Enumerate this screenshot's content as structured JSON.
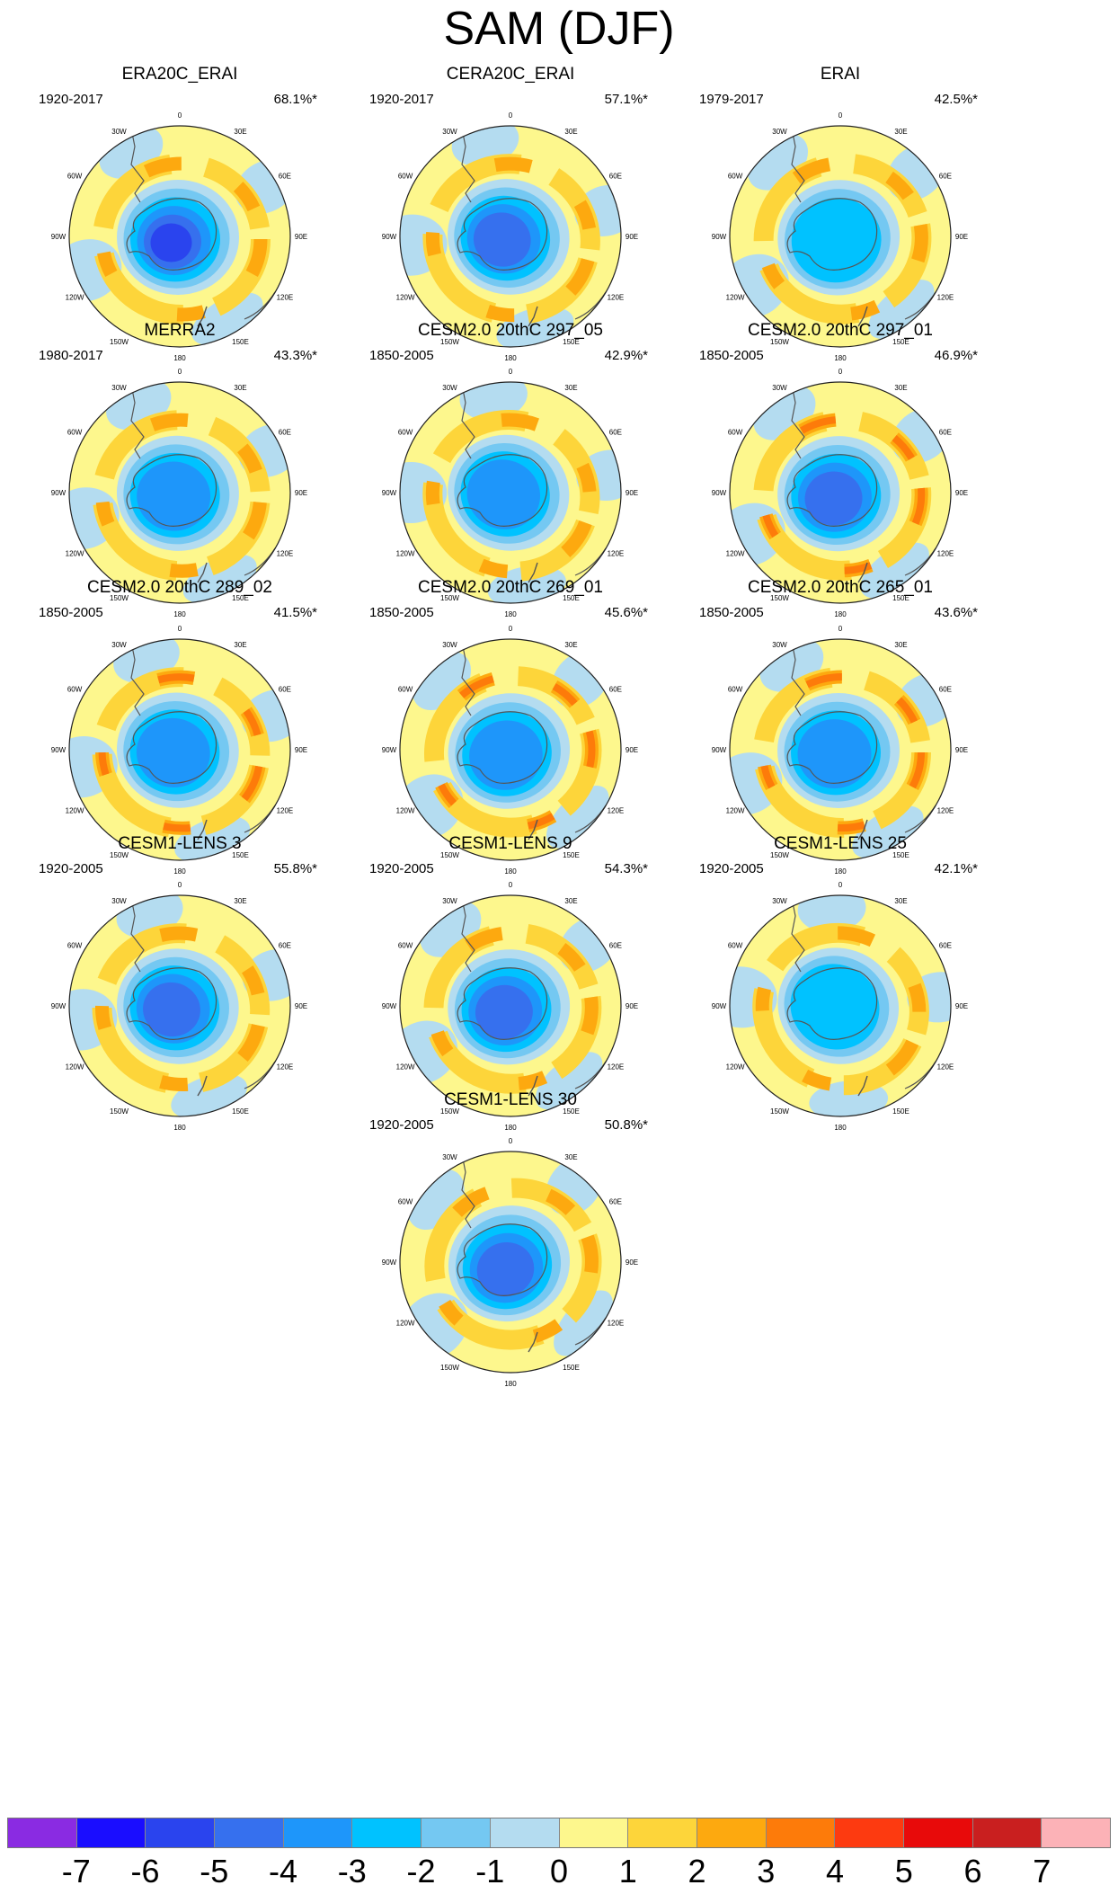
{
  "title": "SAM (DJF)",
  "longitude_labels": [
    "0",
    "30E",
    "60E",
    "90E",
    "120E",
    "150E",
    "180",
    "150W",
    "120W",
    "90W",
    "60W",
    "30W"
  ],
  "panels": [
    {
      "title": "ERA20C_ERAI",
      "period": "1920-2017",
      "pct": "68.1%*",
      "min_level": -6,
      "n_pos": 2,
      "rot": 0
    },
    {
      "title": "CERA20C_ERAI",
      "period": "1920-2017",
      "pct": "57.1%*",
      "min_level": -5,
      "n_pos": 2,
      "rot": 15
    },
    {
      "title": "ERAI",
      "period": "1979-2017",
      "pct": "42.5%*",
      "min_level": -3,
      "n_pos": 2,
      "rot": -10
    },
    {
      "title": "MERRA2",
      "period": "1980-2017",
      "pct": "43.3%*",
      "min_level": -4,
      "n_pos": 2,
      "rot": 5
    },
    {
      "title": "CESM2.0 20thC 297_05",
      "period": "1850-2005",
      "pct": "42.9%*",
      "min_level": -4,
      "n_pos": 2,
      "rot": 20
    },
    {
      "title": "CESM2.0 20thC 297_01",
      "period": "1850-2005",
      "pct": "46.9%*",
      "min_level": -5,
      "n_pos": 3,
      "rot": -5
    },
    {
      "title": "CESM2.0 20thC 289_02",
      "period": "1850-2005",
      "pct": "41.5%*",
      "min_level": -4,
      "n_pos": 3,
      "rot": 10
    },
    {
      "title": "CESM2.0 20thC 269_01",
      "period": "1850-2005",
      "pct": "45.6%*",
      "min_level": -4,
      "n_pos": 3,
      "rot": -15
    },
    {
      "title": "CESM2.0 20thC 265_01",
      "period": "1850-2005",
      "pct": "43.6%*",
      "min_level": -4,
      "n_pos": 3,
      "rot": 0
    },
    {
      "title": "CESM1-LENS 3",
      "period": "1920-2005",
      "pct": "55.8%*",
      "min_level": -5,
      "n_pos": 2,
      "rot": 12
    },
    {
      "title": "CESM1-LENS 9",
      "period": "1920-2005",
      "pct": "54.3%*",
      "min_level": -5,
      "n_pos": 2,
      "rot": -8
    },
    {
      "title": "CESM1-LENS 25",
      "period": "1920-2005",
      "pct": "42.1%*",
      "min_level": -3,
      "n_pos": 2,
      "rot": 25
    },
    {
      "title": "CESM1-LENS 30",
      "period": "1920-2005",
      "pct": "50.8%*",
      "min_level": -5,
      "n_pos": 2,
      "rot": -20
    }
  ],
  "colorbar": {
    "colors": [
      "#8a2be2",
      "#1a0dff",
      "#2a44ee",
      "#3670ee",
      "#1e96fa",
      "#00c2ff",
      "#74c8f2",
      "#b4dcf0",
      "#fdf78d",
      "#fdd53a",
      "#fda90f",
      "#fd7b0a",
      "#fd3a10",
      "#e80a0a",
      "#c91f1f",
      "#fcb2b7"
    ],
    "labels": [
      "-7",
      "-6",
      "-5",
      "-4",
      "-3",
      "-2",
      "-1",
      "0",
      "1",
      "2",
      "3",
      "4",
      "5",
      "6",
      "7"
    ]
  }
}
